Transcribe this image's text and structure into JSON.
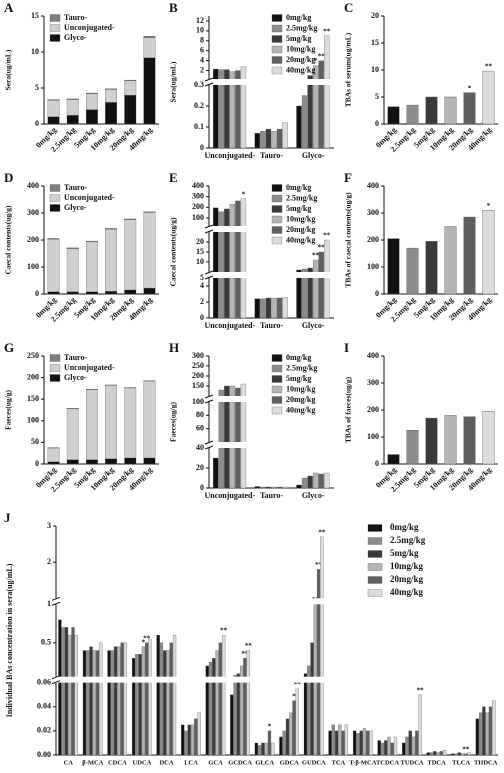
{
  "chart_data": [
    {
      "label": "A",
      "type": "stacked_bar",
      "ylabel": "Sera(ug/mL)",
      "legend": "upper left",
      "categories": [
        "0mg/kg",
        "2.5mg/kg",
        "5mg/kg",
        "10mg/kg",
        "20mg/kg",
        "40mg/kg"
      ],
      "series": [
        {
          "name": "Tauro-",
          "color": "#7f7f7f",
          "values": [
            0.1,
            0.1,
            0.1,
            0.1,
            0.1,
            0.2
          ]
        },
        {
          "name": "Unconjugated-",
          "color": "#cfcfcf",
          "values": [
            2.3,
            2.2,
            2.2,
            1.8,
            2.0,
            2.8
          ]
        },
        {
          "name": "Glyco-",
          "color": "#111111",
          "values": [
            1.0,
            1.2,
            2.0,
            3.0,
            4.0,
            9.2
          ]
        }
      ],
      "ylim": [
        0,
        15
      ],
      "yticks": [
        0,
        5,
        10,
        15
      ]
    },
    {
      "label": "B",
      "type": "grouped_bar",
      "ylabel": "Sera(ug/mL)",
      "legend": "upper right",
      "categories": [
        "Unconjugated-",
        "Tauro-",
        "Glyco-"
      ],
      "series": [
        {
          "name": "0mg/kg",
          "color": "#111111",
          "values": [
            2.3,
            0.07,
            0.2
          ]
        },
        {
          "name": "2.5mg/kg",
          "color": "#8c8c8c",
          "values": [
            2.2,
            0.08,
            0.25
          ]
        },
        {
          "name": "5mg/kg",
          "color": "#3a3a3a",
          "values": [
            2.2,
            0.09,
            1.0
          ]
        },
        {
          "name": "10mg/kg",
          "color": "#b4b4b4",
          "values": [
            1.8,
            0.08,
            3.0
          ],
          "stars": [
            null,
            null,
            "*"
          ]
        },
        {
          "name": "20mg/kg",
          "color": "#5f5f5f",
          "values": [
            2.0,
            0.09,
            4.0
          ],
          "stars": [
            null,
            null,
            "**"
          ]
        },
        {
          "name": "40mg/kg",
          "color": "#dcdcdc",
          "values": [
            2.8,
            0.12,
            9.0
          ],
          "stars": [
            null,
            null,
            "**"
          ]
        }
      ],
      "y_segments": [
        {
          "ylim": [
            0,
            0.3
          ],
          "yticks": [
            0,
            0.1,
            0.2,
            0.3
          ]
        },
        {
          "ylim": [
            0.3,
            13
          ],
          "yticks": [
            2,
            4,
            6,
            8,
            10,
            12
          ]
        }
      ]
    },
    {
      "label": "C",
      "type": "bar",
      "ylabel": "TBAs of serum(ug/mL)",
      "categories": [
        "0mg/kg",
        "2.5mg/kg",
        "5mg/kg",
        "10mg/kg",
        "20mg/kg",
        "40mg/kg"
      ],
      "values": [
        3.2,
        3.5,
        5.0,
        5.0,
        5.8,
        9.8
      ],
      "stars": [
        null,
        null,
        null,
        null,
        "*",
        "**"
      ],
      "colors": [
        "#111111",
        "#8c8c8c",
        "#3a3a3a",
        "#b4b4b4",
        "#5f5f5f",
        "#dcdcdc"
      ],
      "ylim": [
        0,
        20
      ],
      "yticks": [
        0,
        5,
        10,
        15,
        20
      ]
    },
    {
      "label": "D",
      "type": "stacked_bar",
      "ylabel": "Caecal contents(ug/g)",
      "legend": "upper left",
      "categories": [
        "0mg/kg",
        "2.5mg/kg",
        "5mg/kg",
        "10mg/kg",
        "20mg/kg",
        "40mg/kg"
      ],
      "series": [
        {
          "name": "Tauro-",
          "color": "#7f7f7f",
          "values": [
            3,
            3,
            3,
            3,
            3,
            3
          ]
        },
        {
          "name": "Unconjugated-",
          "color": "#cfcfcf",
          "values": [
            195,
            160,
            185,
            230,
            260,
            280
          ]
        },
        {
          "name": "Glyco-",
          "color": "#111111",
          "values": [
            8,
            8,
            8,
            10,
            15,
            22
          ]
        }
      ],
      "ylim": [
        0,
        400
      ],
      "yticks": [
        0,
        100,
        200,
        300,
        400
      ]
    },
    {
      "label": "E",
      "type": "grouped_bar",
      "ylabel": "Caecal contents(ug/g)",
      "legend": "upper right",
      "categories": [
        "Unconjugated-",
        "Tauro-",
        "Glyco-"
      ],
      "series": [
        {
          "name": "0mg/kg",
          "color": "#111111",
          "values": [
            195,
            2.4,
            6.0
          ]
        },
        {
          "name": "2.5mg/kg",
          "color": "#8c8c8c",
          "values": [
            160,
            2.4,
            6.5
          ]
        },
        {
          "name": "5mg/kg",
          "color": "#3a3a3a",
          "values": [
            185,
            2.5,
            7.0
          ]
        },
        {
          "name": "10mg/kg",
          "color": "#b4b4b4",
          "values": [
            230,
            2.5,
            11
          ],
          "stars": [
            null,
            null,
            "**"
          ]
        },
        {
          "name": "20mg/kg",
          "color": "#5f5f5f",
          "values": [
            260,
            2.5,
            15
          ],
          "stars": [
            null,
            null,
            "**"
          ]
        },
        {
          "name": "40mg/kg",
          "color": "#dcdcdc",
          "values": [
            280,
            2.6,
            21
          ],
          "stars": [
            "*",
            null,
            "**"
          ]
        }
      ],
      "y_segments": [
        {
          "ylim": [
            0,
            5
          ],
          "yticks": [
            0,
            2,
            4
          ]
        },
        {
          "ylim": [
            5,
            25
          ],
          "yticks": [
            5,
            10,
            15,
            20
          ]
        },
        {
          "ylim": [
            25,
            400
          ],
          "yticks": [
            100,
            200,
            300,
            400
          ]
        }
      ]
    },
    {
      "label": "F",
      "type": "bar",
      "ylabel": "TBAs of caecal contents(ug/g)",
      "categories": [
        "0mg/kg",
        "2.5mg/kg",
        "5mg/kg",
        "10mg/kg",
        "20mg/kg",
        "40mg/kg"
      ],
      "values": [
        205,
        170,
        195,
        250,
        285,
        310
      ],
      "stars": [
        null,
        null,
        null,
        null,
        null,
        "*"
      ],
      "colors": [
        "#111111",
        "#8c8c8c",
        "#3a3a3a",
        "#b4b4b4",
        "#5f5f5f",
        "#dcdcdc"
      ],
      "ylim": [
        0,
        400
      ],
      "yticks": [
        0,
        100,
        200,
        300,
        400
      ]
    },
    {
      "label": "G",
      "type": "stacked_bar",
      "ylabel": "Faeces(ug/g)",
      "legend": "upper left",
      "categories": [
        "0mg/kg",
        "2.5mg/kg",
        "5mg/kg",
        "10mg/kg",
        "20mg/kg",
        "40mg/kg"
      ],
      "series": [
        {
          "name": "Tauro-",
          "color": "#7f7f7f",
          "values": [
            1,
            1,
            1,
            1,
            1,
            1
          ]
        },
        {
          "name": "Unconjugated-",
          "color": "#cfcfcf",
          "values": [
            32,
            118,
            162,
            170,
            162,
            178
          ]
        },
        {
          "name": "Glyco-",
          "color": "#111111",
          "values": [
            5,
            10,
            10,
            12,
            14,
            14
          ]
        }
      ],
      "ylim": [
        0,
        250
      ],
      "yticks": [
        0,
        50,
        100,
        150,
        200,
        250
      ]
    },
    {
      "label": "H",
      "type": "grouped_bar",
      "ylabel": "Faeces(ug/g)",
      "legend": "upper right",
      "categories": [
        "Unconjugated-",
        "Tauro-",
        "Glyco-"
      ],
      "series": [
        {
          "name": "0mg/kg",
          "color": "#111111",
          "values": [
            30,
            1.5,
            3
          ]
        },
        {
          "name": "2.5mg/kg",
          "color": "#8c8c8c",
          "values": [
            130,
            1,
            10
          ]
        },
        {
          "name": "5mg/kg",
          "color": "#3a3a3a",
          "values": [
            150,
            1,
            12
          ]
        },
        {
          "name": "10mg/kg",
          "color": "#b4b4b4",
          "values": [
            150,
            1,
            15
          ]
        },
        {
          "name": "20mg/kg",
          "color": "#5f5f5f",
          "values": [
            140,
            1,
            14
          ]
        },
        {
          "name": "40mg/kg",
          "color": "#dcdcdc",
          "values": [
            160,
            1,
            15
          ]
        }
      ],
      "y_segments": [
        {
          "ylim": [
            0,
            40
          ],
          "yticks": [
            0,
            20,
            40
          ]
        },
        {
          "ylim": [
            40,
            100
          ],
          "yticks": [
            60,
            80,
            100
          ]
        },
        {
          "ylim": [
            100,
            300
          ],
          "yticks": [
            150,
            200,
            250,
            300
          ]
        }
      ]
    },
    {
      "label": "I",
      "type": "bar",
      "ylabel": "TBAs of faeces(ug/g)",
      "categories": [
        "0mg/kg",
        "2.5mg/kg",
        "5mg/kg",
        "10mg/kg",
        "20mg/kg",
        "40mg/kg"
      ],
      "values": [
        35,
        125,
        170,
        180,
        175,
        195
      ],
      "colors": [
        "#111111",
        "#8c8c8c",
        "#3a3a3a",
        "#b4b4b4",
        "#5f5f5f",
        "#dcdcdc"
      ],
      "ylim": [
        0,
        400
      ],
      "yticks": [
        0,
        100,
        200,
        300,
        400
      ]
    },
    {
      "label": "J",
      "type": "grouped_bar",
      "ylabel": "Individual BAs concentration in sera(ug/mL)",
      "legend": "upper right",
      "categories": [
        "CA",
        "β-MCA",
        "CDCA",
        "UDCA",
        "DCA",
        "LCA",
        "GCA",
        "GCDCA",
        "GLCA",
        "GDCA",
        "GUDCA",
        "TCA",
        "T-β-MCA",
        "TCDCA",
        "TUDCA",
        "TDCA",
        "TLCA",
        "THDCA"
      ],
      "series": [
        {
          "name": "0mg/kg",
          "color": "#111111",
          "values": [
            0.8,
            0.4,
            0.4,
            0.3,
            0.6,
            0.025,
            0.2,
            0.05,
            0.01,
            0.015,
            0.1,
            0.02,
            0.02,
            0.012,
            0.01,
            0.002,
            0.001,
            0.03
          ]
        },
        {
          "name": "2.5mg/kg",
          "color": "#8c8c8c",
          "values": [
            0.7,
            0.4,
            0.4,
            0.35,
            0.5,
            0.02,
            0.25,
            0.08,
            0.008,
            0.02,
            0.2,
            0.025,
            0.018,
            0.01,
            0.015,
            0.002,
            0.001,
            0.035
          ]
        },
        {
          "name": "5mg/kg",
          "color": "#3a3a3a",
          "values": [
            0.7,
            0.45,
            0.45,
            0.35,
            0.4,
            0.025,
            0.3,
            0.1,
            0.01,
            0.03,
            0.5,
            0.02,
            0.02,
            0.012,
            0.02,
            0.003,
            0.002,
            0.04
          ]
        },
        {
          "name": "10mg/kg",
          "color": "#b4b4b4",
          "values": [
            0.6,
            0.4,
            0.45,
            0.45,
            0.4,
            0.025,
            0.4,
            0.2,
            0.01,
            0.035,
            1.0,
            0.025,
            0.022,
            0.015,
            0.015,
            0.002,
            0.001,
            0.035
          ],
          "stars": [
            null,
            null,
            null,
            "*",
            null,
            null,
            null,
            null,
            null,
            null,
            "**",
            null,
            null,
            null,
            null,
            null,
            null,
            null
          ]
        },
        {
          "name": "20mg/kg",
          "color": "#5f5f5f",
          "values": [
            0.7,
            0.4,
            0.5,
            0.5,
            0.5,
            0.03,
            0.5,
            0.3,
            0.02,
            0.045,
            1.8,
            0.02,
            0.02,
            0.01,
            0.02,
            0.003,
            0.001,
            0.04
          ],
          "stars": [
            null,
            null,
            null,
            "**",
            null,
            null,
            null,
            "**",
            "*",
            "*",
            "**",
            null,
            null,
            null,
            null,
            null,
            "**",
            null
          ]
        },
        {
          "name": "40mg/kg",
          "color": "#dcdcdc",
          "values": [
            0.6,
            0.5,
            0.5,
            0.55,
            0.6,
            0.035,
            0.6,
            0.4,
            0.01,
            0.055,
            2.7,
            0.025,
            0.02,
            0.015,
            0.05,
            0.004,
            0.002,
            0.045
          ],
          "stars": [
            null,
            null,
            null,
            null,
            null,
            null,
            "**",
            "**",
            null,
            "**",
            "**",
            null,
            null,
            null,
            "**",
            null,
            null,
            null
          ]
        }
      ],
      "y_segments": [
        {
          "ylim": [
            0,
            0.06
          ],
          "yticks": [
            {
              "value": 0,
              "label": "0.00"
            },
            0.02,
            0.04,
            0.06
          ]
        },
        {
          "ylim": [
            0.06,
            1
          ],
          "yticks": [
            0.5,
            1
          ]
        },
        {
          "ylim": [
            1,
            3
          ],
          "yticks": [
            2,
            3
          ]
        }
      ]
    }
  ]
}
